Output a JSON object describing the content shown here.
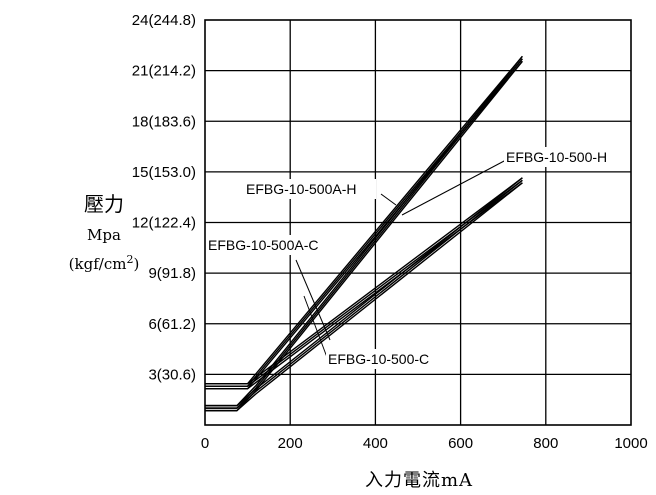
{
  "chart_data": {
    "type": "line",
    "xlabel": "入力電流mA",
    "ylabel": {
      "line1": "壓力",
      "line2": "Mpa",
      "line3_prefix": "(kgf/cm",
      "line3_sup": "2",
      "line3_suffix": ")"
    },
    "xlim": [
      0,
      1000
    ],
    "ylim": [
      0,
      24
    ],
    "grid": true,
    "x_ticks": [
      "0",
      "200",
      "400",
      "600",
      "800",
      "1000"
    ],
    "x_tick_values": [
      0,
      200,
      400,
      600,
      800,
      1000
    ],
    "y_ticks": [
      "3(30.6)",
      "6(61.2)",
      "9(91.8)",
      "12(122.4)",
      "15(153.0)",
      "18(183.6)",
      "21(214.2)",
      "24(244.8)"
    ],
    "y_tick_values": [
      3,
      6,
      9,
      12,
      15,
      18,
      21,
      24
    ],
    "series": [
      {
        "name": "EFBG-10-500A-H",
        "x": [
          0,
          100,
          745
        ],
        "y": [
          2.3,
          2.3,
          21.7
        ]
      },
      {
        "name": "EFBG-10-500-H",
        "x": [
          0,
          75,
          120,
          745
        ],
        "y": [
          1.0,
          1.0,
          2.2,
          21.7
        ]
      },
      {
        "name": "EFBG-10-500A-C",
        "x": [
          0,
          100,
          745
        ],
        "y": [
          2.3,
          2.3,
          14.5
        ]
      },
      {
        "name": "EFBG-10-500-C",
        "x": [
          0,
          75,
          120,
          745
        ],
        "y": [
          1.0,
          1.0,
          2.0,
          14.5
        ]
      }
    ],
    "annotations": [
      {
        "text": "EFBG-10-500A-H",
        "series": 0
      },
      {
        "text": "EFBG-10-500-H",
        "series": 1
      },
      {
        "text": "EFBG-10-500A-C",
        "series": 2
      },
      {
        "text": "EFBG-10-500-C",
        "series": 3
      }
    ]
  }
}
